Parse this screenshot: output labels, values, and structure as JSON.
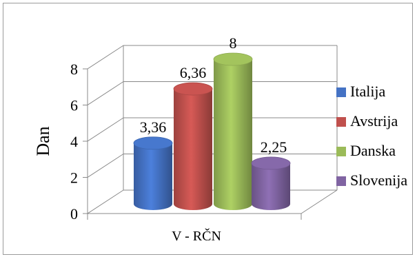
{
  "chart_data": {
    "type": "bar",
    "subtype": "3d-cylinder-clustered",
    "categories": [
      "V - RČN"
    ],
    "series": [
      {
        "name": "Italija",
        "values": [
          3.36
        ],
        "color": "#4472C4"
      },
      {
        "name": "Avstrija",
        "values": [
          6.36
        ],
        "color": "#C0504D"
      },
      {
        "name": "Danska",
        "values": [
          8
        ],
        "color": "#9BBB59"
      },
      {
        "name": "Slovenija",
        "values": [
          2.25
        ],
        "color": "#8064A2"
      }
    ],
    "data_labels": [
      "3,36",
      "6,36",
      "8",
      "2,25"
    ],
    "ylabel": "Dan",
    "xlabel": "",
    "ylim": [
      0,
      8
    ],
    "y_ticks": [
      "0",
      "2",
      "4",
      "6",
      "8"
    ],
    "grid": true,
    "legend_position": "right"
  }
}
